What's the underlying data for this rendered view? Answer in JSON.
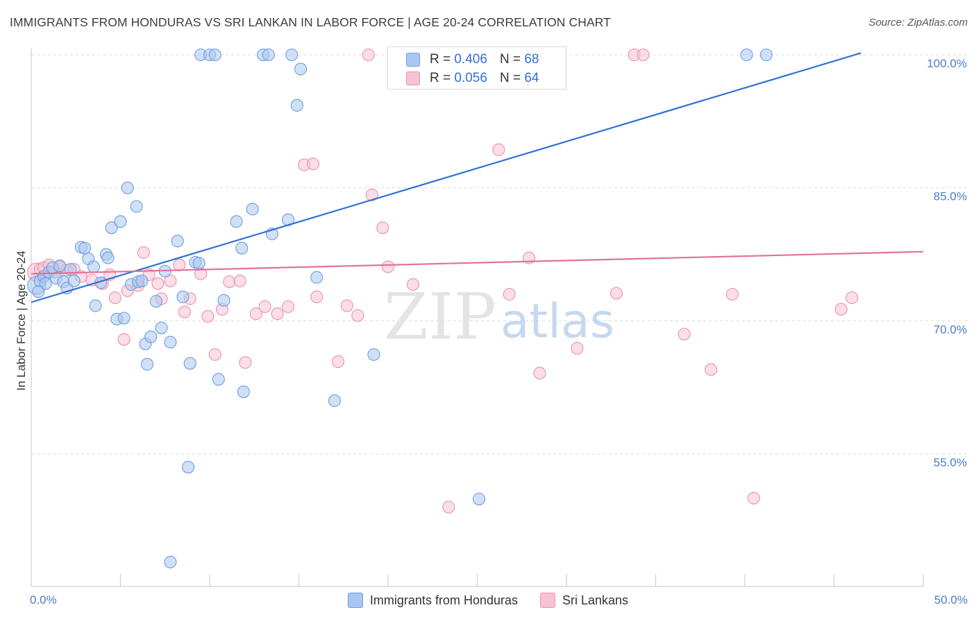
{
  "title": "IMMIGRANTS FROM HONDURAS VS SRI LANKAN IN LABOR FORCE | AGE 20-24 CORRELATION CHART",
  "source": "Source: ZipAtlas.com",
  "watermark": {
    "zip": "ZIP",
    "atlas": "atlas"
  },
  "colors": {
    "blue_fill": "#a9c6ef",
    "blue_stroke": "#6c9de0",
    "blue_line": "#2f72d2",
    "pink_fill": "#f7c2d3",
    "pink_stroke": "#ea90ae",
    "pink_line": "#e2709a",
    "grid": "#d9d9d9",
    "tick_label": "#4a7cc7"
  },
  "legend_top": {
    "rows": [
      {
        "series": "blue",
        "r_label": "R = ",
        "r_value": "0.406",
        "n_label": "N = ",
        "n_value": "68"
      },
      {
        "series": "pink",
        "r_label": "R = ",
        "r_value": "0.056",
        "n_label": "N = ",
        "n_value": "64"
      }
    ]
  },
  "legend_bottom": [
    {
      "series": "blue",
      "label": "Immigrants from Honduras"
    },
    {
      "series": "pink",
      "label": "Sri Lankans"
    }
  ],
  "chart_data": {
    "type": "scatter",
    "title": "IMMIGRANTS FROM HONDURAS VS SRI LANKAN IN LABOR FORCE | AGE 20-24 CORRELATION CHART",
    "xlabel": "",
    "ylabel": "In Labor Force | Age 20-24",
    "xlim": [
      0,
      50
    ],
    "ylim": [
      40.5,
      103
    ],
    "x_tick_labels": [
      {
        "value": 0,
        "label": "0.0%"
      },
      {
        "value": 50,
        "label": "50.0%"
      }
    ],
    "x_minor_ticks": [
      5,
      10,
      15,
      20,
      25,
      30,
      35,
      40,
      45,
      50
    ],
    "y_ticks": [
      {
        "value": 100,
        "label": "100.0%"
      },
      {
        "value": 85,
        "label": "85.0%"
      },
      {
        "value": 70,
        "label": "70.0%"
      },
      {
        "value": 55,
        "label": "55.0%"
      }
    ],
    "grid": true,
    "series": [
      {
        "name": "Immigrants from Honduras",
        "color": "blue",
        "R": 0.406,
        "N": 68,
        "trend": {
          "x0": 0,
          "y0": 72.1,
          "x1": 46.5,
          "y1": 100.2
        },
        "points": [
          [
            0.3,
            74.0
          ],
          [
            0.5,
            74.5
          ],
          [
            0.7,
            75.0
          ],
          [
            0.8,
            74.2
          ],
          [
            1.0,
            75.5
          ],
          [
            1.2,
            76.0
          ],
          [
            1.4,
            74.8
          ],
          [
            1.6,
            76.2
          ],
          [
            1.8,
            74.4
          ],
          [
            2.0,
            73.7
          ],
          [
            2.2,
            75.8
          ],
          [
            2.4,
            74.5
          ],
          [
            2.8,
            78.3
          ],
          [
            3.0,
            78.2
          ],
          [
            3.2,
            77.0
          ],
          [
            3.6,
            71.7
          ],
          [
            3.5,
            76.1
          ],
          [
            3.9,
            74.3
          ],
          [
            4.2,
            77.5
          ],
          [
            4.3,
            77.1
          ],
          [
            4.5,
            80.5
          ],
          [
            4.8,
            70.2
          ],
          [
            5.0,
            81.2
          ],
          [
            5.2,
            70.3
          ],
          [
            5.4,
            85.0
          ],
          [
            5.6,
            74.1
          ],
          [
            5.9,
            82.9
          ],
          [
            6.0,
            74.4
          ],
          [
            6.2,
            74.5
          ],
          [
            6.4,
            67.4
          ],
          [
            6.5,
            65.1
          ],
          [
            6.7,
            68.2
          ],
          [
            7.0,
            72.2
          ],
          [
            7.3,
            69.2
          ],
          [
            7.5,
            75.6
          ],
          [
            7.8,
            67.6
          ],
          [
            8.2,
            79.0
          ],
          [
            8.5,
            72.7
          ],
          [
            8.9,
            65.2
          ],
          [
            9.2,
            76.6
          ],
          [
            9.4,
            76.5
          ],
          [
            8.8,
            53.5
          ],
          [
            7.8,
            42.8
          ],
          [
            9.5,
            100.0
          ],
          [
            10.0,
            100.0
          ],
          [
            10.3,
            100.0
          ],
          [
            10.5,
            63.4
          ],
          [
            10.8,
            72.3
          ],
          [
            11.5,
            81.2
          ],
          [
            11.8,
            78.2
          ],
          [
            11.9,
            62.0
          ],
          [
            12.4,
            82.6
          ],
          [
            13.0,
            100.0
          ],
          [
            13.3,
            100.0
          ],
          [
            13.5,
            79.8
          ],
          [
            14.4,
            81.4
          ],
          [
            14.6,
            100.0
          ],
          [
            14.9,
            94.3
          ],
          [
            15.1,
            98.4
          ],
          [
            16.0,
            74.9
          ],
          [
            17.0,
            61.0
          ],
          [
            19.2,
            66.2
          ],
          [
            22.4,
            100.0
          ],
          [
            25.1,
            49.9
          ],
          [
            28.0,
            100.0
          ],
          [
            40.1,
            100.0
          ],
          [
            41.2,
            100.0
          ],
          [
            0.4,
            73.3
          ]
        ]
      },
      {
        "name": "Sri Lankans",
        "color": "pink",
        "R": 0.056,
        "N": 64,
        "trend": {
          "x0": 0,
          "y0": 75.3,
          "x1": 50,
          "y1": 77.8
        },
        "points": [
          [
            0.3,
            75.5
          ],
          [
            0.5,
            75.8
          ],
          [
            0.7,
            76.0
          ],
          [
            1.0,
            76.3
          ],
          [
            1.3,
            75.5
          ],
          [
            1.6,
            76.1
          ],
          [
            2.0,
            75.7
          ],
          [
            2.4,
            75.8
          ],
          [
            2.8,
            75.0
          ],
          [
            3.4,
            74.6
          ],
          [
            4.0,
            74.2
          ],
          [
            4.4,
            75.2
          ],
          [
            4.7,
            72.6
          ],
          [
            5.2,
            67.9
          ],
          [
            5.4,
            73.4
          ],
          [
            6.0,
            74.0
          ],
          [
            6.3,
            77.7
          ],
          [
            6.6,
            75.2
          ],
          [
            7.1,
            74.2
          ],
          [
            7.3,
            72.5
          ],
          [
            7.8,
            74.5
          ],
          [
            8.3,
            76.3
          ],
          [
            8.6,
            71.0
          ],
          [
            8.9,
            72.5
          ],
          [
            9.5,
            75.3
          ],
          [
            9.9,
            70.5
          ],
          [
            10.3,
            66.2
          ],
          [
            10.7,
            71.3
          ],
          [
            11.1,
            74.4
          ],
          [
            11.7,
            74.5
          ],
          [
            12.0,
            65.3
          ],
          [
            12.6,
            70.8
          ],
          [
            13.1,
            71.6
          ],
          [
            13.8,
            70.8
          ],
          [
            14.4,
            71.6
          ],
          [
            15.3,
            87.6
          ],
          [
            15.8,
            87.7
          ],
          [
            16.0,
            72.7
          ],
          [
            17.2,
            65.4
          ],
          [
            17.7,
            71.7
          ],
          [
            18.3,
            70.6
          ],
          [
            18.9,
            100.0
          ],
          [
            19.1,
            84.2
          ],
          [
            19.7,
            80.5
          ],
          [
            20.0,
            76.1
          ],
          [
            21.4,
            74.1
          ],
          [
            21.9,
            100.0
          ],
          [
            22.4,
            100.0
          ],
          [
            23.4,
            49.0
          ],
          [
            24.4,
            100.0
          ],
          [
            26.2,
            89.3
          ],
          [
            26.8,
            73.0
          ],
          [
            27.9,
            77.1
          ],
          [
            28.5,
            64.1
          ],
          [
            30.6,
            66.9
          ],
          [
            32.8,
            73.1
          ],
          [
            33.8,
            100.0
          ],
          [
            34.3,
            100.0
          ],
          [
            36.6,
            68.5
          ],
          [
            38.1,
            64.5
          ],
          [
            39.3,
            73.0
          ],
          [
            40.5,
            50.0
          ],
          [
            45.4,
            71.3
          ],
          [
            46.0,
            72.6
          ]
        ]
      }
    ]
  }
}
